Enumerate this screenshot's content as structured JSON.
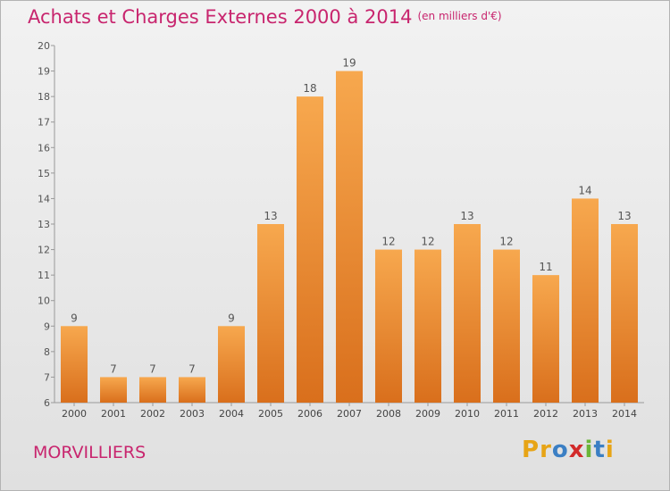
{
  "header": {
    "title": "Achats et Charges Externes 2000 à 2014",
    "subtitle": "(en milliers d'€)"
  },
  "footer": {
    "commune": "MORVILLIERS",
    "logo_text": "Proxiti",
    "logo_colors": [
      "#e7a416",
      "#e7a416",
      "#3b7fc4",
      "#d22a2a",
      "#6bb538",
      "#3b7fc4",
      "#e7a416"
    ]
  },
  "chart_data": {
    "type": "bar",
    "categories": [
      "2000",
      "2001",
      "2002",
      "2003",
      "2004",
      "2005",
      "2006",
      "2007",
      "2008",
      "2009",
      "2010",
      "2011",
      "2012",
      "2013",
      "2014"
    ],
    "values": [
      9,
      7,
      7,
      7,
      9,
      13,
      18,
      19,
      12,
      12,
      13,
      12,
      11,
      14,
      13
    ],
    "ylim": [
      6,
      20
    ],
    "yticks": [
      6,
      7,
      8,
      9,
      10,
      11,
      12,
      13,
      14,
      15,
      16,
      17,
      18,
      19,
      20
    ],
    "grid": false,
    "bar_color_top": "#f7a84e",
    "bar_color_bottom": "#d96f1c"
  }
}
